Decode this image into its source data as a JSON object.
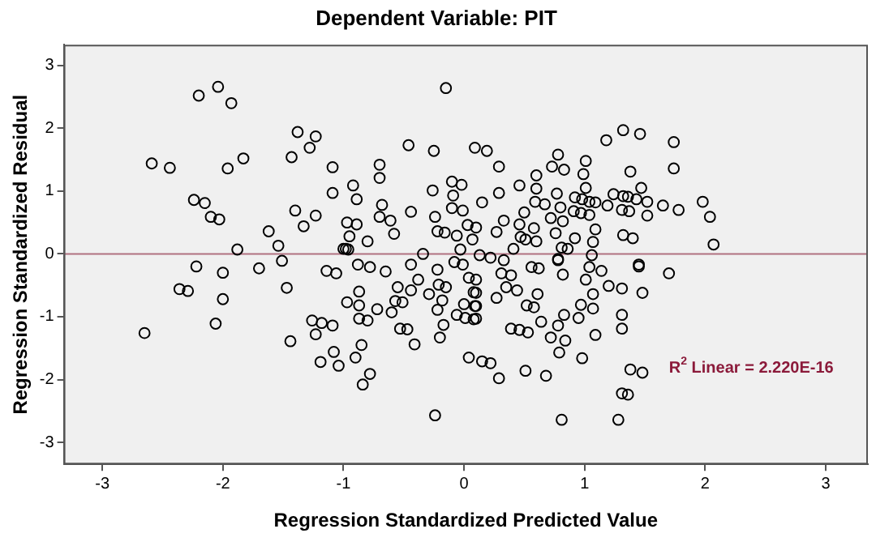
{
  "chart_data": {
    "type": "scatter",
    "title": "Dependent Variable: PIT",
    "xlabel": "Regression Standardized Predicted Value",
    "ylabel": "Regression Standardized Residual",
    "xlim": [
      -3.32,
      3.35
    ],
    "ylim": [
      -3.35,
      3.33
    ],
    "xticks": [
      -3,
      -2,
      -1,
      0,
      1,
      2,
      3
    ],
    "yticks": [
      -3,
      -2,
      -1,
      0,
      1,
      2,
      3
    ],
    "grid": false,
    "legend": false,
    "marker": "circle",
    "ref_lines": [
      {
        "axis": "y",
        "value": 0,
        "color": "#b07080"
      }
    ],
    "annotations": [
      "R$^{2}$ Linear = 2.220E-16"
    ],
    "series": [
      {
        "color": "#000000",
        "x": [
          -2.2,
          -2.04,
          -1.93,
          -0.15,
          -2.59,
          -2.44,
          -1.96,
          -1.83,
          -1.38,
          -1.23,
          -1.28,
          -1.43,
          -1.09,
          -1.09,
          -2.24,
          -2.15,
          -2.1,
          -2.03,
          -1.4,
          -1.33,
          -1.23,
          -1.62,
          -1.54,
          -1.88,
          -0.92,
          -0.89,
          -0.7,
          -0.7,
          -0.68,
          -0.7,
          -0.61,
          -0.58,
          -0.97,
          -0.89,
          -0.95,
          -0.8,
          -0.98,
          -0.46,
          -0.25,
          -0.44,
          -0.26,
          -0.1,
          -0.02,
          -0.09,
          -0.1,
          -0.01,
          -0.24,
          -0.22,
          -0.16,
          -0.06,
          0.03,
          0.1,
          0.07,
          -0.03,
          -0.34,
          0.09,
          0.15,
          0.19,
          0.29,
          0.29,
          0.46,
          0.6,
          0.6,
          0.59,
          0.67,
          0.5,
          0.33,
          0.46,
          0.27,
          0.58,
          0.47,
          0.51,
          0.6,
          0.41,
          0.33,
          0.13,
          0.22,
          0.78,
          0.73,
          0.83,
          1.01,
          0.99,
          1.01,
          0.77,
          0.8,
          0.72,
          0.82,
          0.92,
          0.98,
          1.04,
          1.09,
          0.91,
          0.97,
          1.04,
          1.09,
          0.76,
          0.92,
          1.07,
          0.81,
          0.86,
          1.06,
          0.78,
          1.18,
          1.32,
          1.46,
          1.74,
          1.74,
          1.38,
          1.47,
          1.19,
          1.24,
          1.32,
          1.36,
          1.43,
          1.52,
          1.31,
          1.37,
          1.52,
          1.65,
          1.78,
          1.98,
          2.04,
          2.07,
          1.32,
          1.4,
          1.45,
          -1,
          -0.96,
          -2.22,
          -2.36,
          -2.29,
          -2,
          -2,
          -2.06,
          -2.65,
          -1.7,
          -1.51,
          -1.47,
          -1.44,
          -1.14,
          -1.06,
          -1.26,
          -1.18,
          -1.09,
          -1.23,
          -1.08,
          -1.19,
          -1.04,
          -0.85,
          -0.9,
          -0.78,
          -0.84,
          -0.97,
          -0.87,
          -0.87,
          -0.87,
          -0.8,
          -0.72,
          -0.88,
          -0.78,
          -0.65,
          -0.6,
          -0.57,
          -0.55,
          -0.51,
          -0.53,
          -0.47,
          -0.41,
          -0.44,
          -0.44,
          -0.38,
          -0.29,
          -0.22,
          -0.21,
          -0.15,
          -0.18,
          -0.22,
          -0.17,
          -0.2,
          -0.24,
          -0.08,
          -0.01,
          0.04,
          0.08,
          0,
          0.09,
          -0.06,
          0.01,
          0.08,
          0.04,
          0.15,
          0.1,
          0.1,
          0.1,
          0.1,
          0.22,
          0.29,
          0.31,
          0.39,
          0.35,
          0.44,
          0.27,
          0.39,
          0.46,
          0.53,
          0.51,
          0.68,
          0.56,
          0.62,
          0.61,
          0.52,
          0.58,
          0.64,
          0.78,
          0.82,
          0.78,
          0.72,
          0.84,
          0.79,
          0.83,
          0.95,
          0.97,
          1.01,
          1.07,
          1.07,
          1.09,
          0.98,
          1.04,
          1.14,
          1.2,
          1.31,
          1.31,
          1.31,
          1.45,
          1.48,
          1.7,
          1.38,
          1.48,
          1.31,
          1.36,
          0.81,
          1.28
        ],
        "values": [
          2.52,
          2.66,
          2.4,
          2.64,
          1.44,
          1.37,
          1.36,
          1.52,
          1.94,
          1.87,
          1.69,
          1.54,
          1.38,
          0.97,
          0.86,
          0.81,
          0.59,
          0.55,
          0.69,
          0.44,
          0.61,
          0.36,
          0.13,
          0.07,
          1.09,
          0.87,
          1.42,
          1.21,
          0.78,
          0.59,
          0.53,
          0.32,
          0.5,
          0.47,
          0.28,
          0.2,
          0.08,
          1.73,
          1.64,
          0.67,
          1.01,
          1.15,
          1.1,
          0.93,
          0.73,
          0.69,
          0.59,
          0.36,
          0.34,
          0.29,
          0.46,
          0.42,
          0.23,
          0.07,
          0,
          1.69,
          0.82,
          1.64,
          1.39,
          0.97,
          1.09,
          1.25,
          1.04,
          0.83,
          0.79,
          0.66,
          0.53,
          0.47,
          0.35,
          0.41,
          0.27,
          0.23,
          0.2,
          0.08,
          -0.1,
          -0.02,
          -0.06,
          1.58,
          1.39,
          1.34,
          1.48,
          1.27,
          1.05,
          0.96,
          0.74,
          0.57,
          0.52,
          0.9,
          0.87,
          0.83,
          0.82,
          0.68,
          0.65,
          0.62,
          0.39,
          0.33,
          0.25,
          0.19,
          0.1,
          0.08,
          -0.02,
          -0.1,
          1.81,
          1.97,
          1.91,
          1.78,
          1.36,
          1.31,
          1.05,
          0.77,
          0.95,
          0.92,
          0.91,
          0.87,
          0.83,
          0.7,
          0.68,
          0.61,
          0.77,
          0.7,
          0.83,
          0.59,
          0.15,
          0.3,
          0.25,
          -0.17,
          0.08,
          0.07,
          -0.2,
          -0.56,
          -0.59,
          -0.3,
          -0.72,
          -1.11,
          -1.26,
          -0.23,
          -0.11,
          -0.54,
          -1.39,
          -0.27,
          -0.31,
          -1.06,
          -1.1,
          -1.14,
          -1.28,
          -1.56,
          -1.72,
          -1.78,
          -1.45,
          -1.65,
          -1.91,
          -2.08,
          -0.77,
          -0.6,
          -0.82,
          -1.03,
          -1.06,
          -0.88,
          -0.17,
          -0.21,
          -0.28,
          -0.93,
          -0.75,
          -0.53,
          -0.77,
          -1.19,
          -1.2,
          -1.44,
          -0.58,
          -0.17,
          -0.41,
          -0.64,
          -0.25,
          -0.49,
          -0.53,
          -0.74,
          -0.89,
          -1.13,
          -1.33,
          -2.57,
          -0.13,
          -0.17,
          -0.38,
          -0.61,
          -0.8,
          -0.83,
          -0.97,
          -1.02,
          -1.04,
          -1.65,
          -1.71,
          -0.41,
          -0.62,
          -0.83,
          -1.03,
          -1.74,
          -1.98,
          -0.31,
          -0.34,
          -0.53,
          -0.58,
          -0.7,
          -1.19,
          -1.21,
          -1.25,
          -1.86,
          -1.94,
          -0.21,
          -0.23,
          -0.64,
          -0.82,
          -0.85,
          -1.08,
          -0.08,
          -0.33,
          -1.14,
          -1.33,
          -1.38,
          -1.57,
          -0.97,
          -1.02,
          -0.81,
          -0.41,
          -0.64,
          -0.87,
          -1.29,
          -1.66,
          -0.21,
          -0.27,
          -0.51,
          -0.55,
          -0.97,
          -1.19,
          -0.2,
          -0.62,
          -0.31,
          -1.84,
          -1.89,
          -2.22,
          -2.24,
          -2.64,
          -2.64
        ]
      }
    ]
  }
}
